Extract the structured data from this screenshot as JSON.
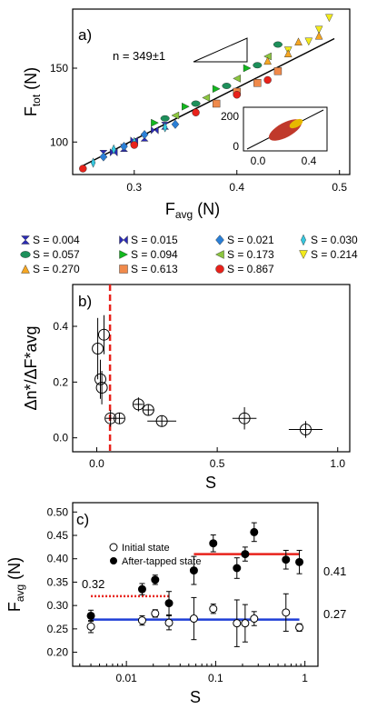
{
  "colors": {
    "red": "#e8221b",
    "blue": "#1f3fd6",
    "black": "#000000"
  },
  "legend": [
    {
      "label": "S = 0.004",
      "color": "#2b2bb5",
      "marker": "hourglass"
    },
    {
      "label": "S = 0.015",
      "color": "#2b2bb5",
      "marker": "bowtie"
    },
    {
      "label": "S = 0.021",
      "color": "#2a7fd6",
      "marker": "diamond"
    },
    {
      "label": "S = 0.030",
      "color": "#36c8e0",
      "marker": "thin-diamond"
    },
    {
      "label": "S = 0.057",
      "color": "#1d8f5a",
      "marker": "ellipse"
    },
    {
      "label": "S = 0.094",
      "color": "#12b81e",
      "marker": "triangle-right"
    },
    {
      "label": "S = 0.173",
      "color": "#8cc63f",
      "marker": "triangle-left"
    },
    {
      "label": "S = 0.214",
      "color": "#f2ea1c",
      "marker": "triangle-down"
    },
    {
      "label": "S = 0.270",
      "color": "#f5a623",
      "marker": "triangle-up"
    },
    {
      "label": "S = 0.613",
      "color": "#f08a4b",
      "marker": "square"
    },
    {
      "label": "S = 0.867",
      "color": "#e8221b",
      "marker": "circle"
    }
  ],
  "panel_a": {
    "letter": "a)",
    "slope_label": "n = 349±1",
    "xlabel": "F",
    "xlabel_sub": "avg",
    "xlabel_unit": " (N)",
    "ylabel": "F",
    "ylabel_sub": "tot",
    "ylabel_unit": " (N)",
    "xticks": [
      "0.3",
      "0.4",
      "0.5"
    ],
    "yticks": [
      "100",
      "150"
    ],
    "inset_xticks": [
      "0.0",
      "0.4"
    ],
    "inset_yticks": [
      "0",
      "200"
    ]
  },
  "panel_b": {
    "letter": "b)",
    "xlabel": "S",
    "ylabel": "Δn*/ΔF*avg",
    "xticks": [
      "0.0",
      "0.5",
      "1.0"
    ],
    "yticks": [
      "0.0",
      "0.2",
      "0.4"
    ]
  },
  "panel_c": {
    "letter": "c)",
    "xlabel": "S",
    "ylabel": "F",
    "ylabel_sub": "avg",
    "ylabel_unit": " (N)",
    "legend_initial": "Initial state",
    "legend_after": "After-tapped state",
    "annot_032": "0.32",
    "annot_041": "0.41",
    "annot_027": "0.27",
    "xticks": [
      "0.01",
      "0.1",
      "1"
    ],
    "yticks": [
      "0.20",
      "0.25",
      "0.30",
      "0.35",
      "0.40",
      "0.45",
      "0.50"
    ]
  },
  "chart_data": [
    {
      "type": "scatter",
      "panel": "a",
      "xlabel": "Favg (N)",
      "ylabel": "Ftot (N)",
      "xlim": [
        0.24,
        0.51
      ],
      "ylim": [
        78,
        190
      ],
      "fit_line": {
        "slope": 349,
        "slope_err": 1,
        "x": [
          0.25,
          0.495
        ],
        "y": [
          84,
          170
        ]
      },
      "series": [
        {
          "name": "S = 0.004",
          "x": [
            0.27,
            0.29,
            0.31,
            0.33
          ],
          "y": [
            92,
            96,
            103,
            111
          ]
        },
        {
          "name": "S = 0.015",
          "x": [
            0.28,
            0.3,
            0.32
          ],
          "y": [
            93,
            101,
            108
          ]
        },
        {
          "name": "S = 0.021",
          "x": [
            0.27,
            0.29,
            0.31,
            0.34
          ],
          "y": [
            90,
            97,
            105,
            112
          ]
        },
        {
          "name": "S = 0.030",
          "x": [
            0.26,
            0.28,
            0.3,
            0.33
          ],
          "y": [
            86,
            95,
            100,
            110
          ]
        },
        {
          "name": "S = 0.057",
          "x": [
            0.33,
            0.36,
            0.39,
            0.42,
            0.44
          ],
          "y": [
            116,
            126,
            138,
            152,
            166
          ]
        },
        {
          "name": "S = 0.094",
          "x": [
            0.32,
            0.35,
            0.38,
            0.41
          ],
          "y": [
            113,
            124,
            136,
            150
          ]
        },
        {
          "name": "S = 0.173",
          "x": [
            0.34,
            0.37,
            0.4,
            0.43
          ],
          "y": [
            118,
            130,
            143,
            158
          ]
        },
        {
          "name": "S = 0.214",
          "x": [
            0.45,
            0.47,
            0.48,
            0.49
          ],
          "y": [
            162,
            168,
            176,
            184
          ]
        },
        {
          "name": "S = 0.270",
          "x": [
            0.43,
            0.45,
            0.46,
            0.48
          ],
          "y": [
            155,
            160,
            168,
            172
          ]
        },
        {
          "name": "S = 0.613",
          "x": [
            0.38,
            0.4,
            0.42,
            0.44
          ],
          "y": [
            126,
            134,
            140,
            148
          ]
        },
        {
          "name": "S = 0.867",
          "x": [
            0.25,
            0.3,
            0.36,
            0.4,
            0.43
          ],
          "y": [
            82,
            98,
            120,
            132,
            142
          ]
        }
      ]
    },
    {
      "type": "scatter",
      "panel": "b",
      "xlabel": "S",
      "ylabel": "Δn*/ΔF*avg",
      "xlim": [
        -0.1,
        1.05
      ],
      "ylim": [
        -0.05,
        0.55
      ],
      "vline_x": 0.055,
      "points": [
        {
          "x": 0.004,
          "y": 0.32,
          "yerr": 0.11,
          "xerr": 0.0
        },
        {
          "x": 0.015,
          "y": 0.21,
          "yerr": 0.07,
          "xerr": 0.0
        },
        {
          "x": 0.021,
          "y": 0.18,
          "yerr": 0.06,
          "xerr": 0.0
        },
        {
          "x": 0.03,
          "y": 0.37,
          "yerr": 0.07,
          "xerr": 0.0
        },
        {
          "x": 0.057,
          "y": 0.07,
          "yerr": 0.03,
          "xerr": 0.02
        },
        {
          "x": 0.094,
          "y": 0.07,
          "yerr": 0.02,
          "xerr": 0.02
        },
        {
          "x": 0.173,
          "y": 0.12,
          "yerr": 0.025,
          "xerr": 0.02
        },
        {
          "x": 0.214,
          "y": 0.1,
          "yerr": 0.02,
          "xerr": 0.025
        },
        {
          "x": 0.27,
          "y": 0.06,
          "yerr": 0.02,
          "xerr": 0.06
        },
        {
          "x": 0.613,
          "y": 0.07,
          "yerr": 0.04,
          "xerr": 0.05
        },
        {
          "x": 0.867,
          "y": 0.03,
          "yerr": 0.03,
          "xerr": 0.07
        }
      ]
    },
    {
      "type": "scatter",
      "panel": "c",
      "xlabel": "S",
      "ylabel": "Favg (N)",
      "xscale": "log",
      "xlim": [
        0.0025,
        1.4
      ],
      "ylim": [
        0.17,
        0.52
      ],
      "series": [
        {
          "name": "Initial state",
          "x": [
            0.004,
            0.015,
            0.021,
            0.03,
            0.057,
            0.094,
            0.173,
            0.214,
            0.27,
            0.613,
            0.867
          ],
          "y": [
            0.255,
            0.268,
            0.283,
            0.263,
            0.272,
            0.293,
            0.262,
            0.262,
            0.272,
            0.285,
            0.253
          ],
          "yerr": [
            0.013,
            0.01,
            0.008,
            0.015,
            0.045,
            0.01,
            0.05,
            0.04,
            0.015,
            0.04,
            0.008
          ]
        },
        {
          "name": "After-tapped state",
          "x": [
            0.004,
            0.015,
            0.021,
            0.03,
            0.057,
            0.094,
            0.173,
            0.214,
            0.27,
            0.613,
            0.867
          ],
          "y": [
            0.278,
            0.335,
            0.355,
            0.305,
            0.375,
            0.433,
            0.38,
            0.41,
            0.457,
            0.398,
            0.393
          ],
          "yerr": [
            0.012,
            0.012,
            0.01,
            0.025,
            0.03,
            0.018,
            0.022,
            0.015,
            0.02,
            0.02,
            0.025
          ]
        }
      ],
      "hlines": [
        {
          "y": 0.32,
          "x": [
            0.004,
            0.03
          ],
          "style": "dotted",
          "color": "#e8221b"
        },
        {
          "y": 0.41,
          "x": [
            0.057,
            0.867
          ],
          "style": "solid",
          "color": "#e8221b"
        },
        {
          "y": 0.27,
          "x": [
            0.004,
            0.867
          ],
          "style": "solid",
          "color": "#1f3fd6"
        }
      ]
    }
  ]
}
